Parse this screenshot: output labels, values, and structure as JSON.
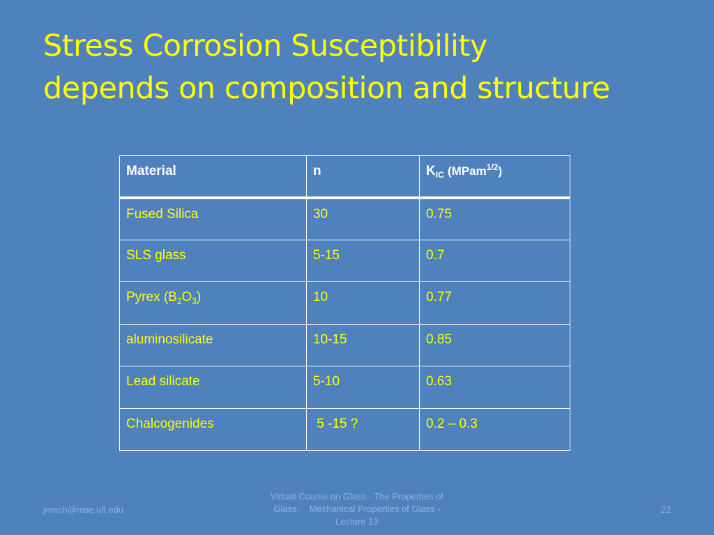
{
  "slide": {
    "title_line1": "Stress Corrosion Susceptibility",
    "title_line2": "depends on composition and structure",
    "colors": {
      "background": "#4f81bd",
      "title": "#ffff00",
      "cell_text": "#ffff00",
      "header_text": "#ffffff",
      "border": "#ffffff",
      "footer": "#8db3e2"
    }
  },
  "table": {
    "headers": {
      "material": "Material",
      "n": "n",
      "kic_symbol": "K",
      "kic_sub": "IC",
      "kic_unit_open": "(MPam",
      "kic_unit_sup": "1/2",
      "kic_unit_close": ")"
    },
    "rows": [
      {
        "material": "Fused Silica",
        "n": "30",
        "kic": "0.75"
      },
      {
        "material": "SLS glass",
        "n": "5-15",
        "kic": "0.7"
      },
      {
        "material_prefix": "Pyrex (B",
        "material_sub1": "2",
        "material_mid": "O",
        "material_sub2": "3",
        "material_suffix": ")",
        "n": "10",
        "kic": "0.77"
      },
      {
        "material": "aluminosilicate",
        "n": "10-15",
        "kic": "0.85"
      },
      {
        "material": "Lead silicate",
        "n": "5-10",
        "kic": "0.63"
      },
      {
        "material": "Chalcogenides",
        "n": " 5 -15 ?",
        "kic": "0.2 – 0.3"
      }
    ]
  },
  "footer": {
    "email": "jmech@mse.ufl.edu",
    "course_line1": "Virtual Course on Glass - The Properties of",
    "course_line2": "Glass:    Mechanical Properties of Glass -",
    "course_line3": "Lecture 13",
    "page_number": "22"
  }
}
